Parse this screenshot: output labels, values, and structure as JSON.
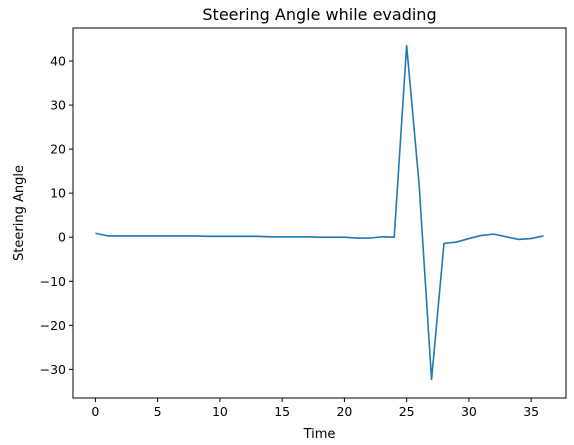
{
  "chart_data": {
    "type": "line",
    "title": "Steering Angle while evading",
    "xlabel": "Time",
    "ylabel": "Steering Angle",
    "xlim": [
      -1.8,
      37.8
    ],
    "ylim": [
      -36.5,
      47.5
    ],
    "x_ticks": [
      0,
      5,
      10,
      15,
      20,
      25,
      30,
      35
    ],
    "y_ticks": [
      -30,
      -20,
      -10,
      0,
      10,
      20,
      30,
      40
    ],
    "x_tick_labels": [
      "0",
      "5",
      "10",
      "15",
      "20",
      "25",
      "30",
      "35"
    ],
    "y_tick_labels": [
      "−30",
      "−20",
      "−10",
      "0",
      "10",
      "20",
      "30",
      "40"
    ],
    "grid": false,
    "color": "#1f77b4",
    "series": [
      {
        "x": [
          0,
          1,
          2,
          3,
          4,
          5,
          6,
          7,
          8,
          9,
          10,
          11,
          12,
          13,
          14,
          15,
          16,
          17,
          18,
          19,
          20,
          21,
          22,
          23,
          24,
          25,
          26,
          27,
          28,
          29,
          30,
          31,
          32,
          33,
          34,
          35,
          36
        ],
        "values": [
          0.9,
          0.3,
          0.3,
          0.3,
          0.3,
          0.3,
          0.3,
          0.3,
          0.3,
          0.2,
          0.2,
          0.2,
          0.2,
          0.2,
          0.1,
          0.1,
          0.1,
          0.1,
          0.0,
          0.0,
          0.0,
          -0.2,
          -0.2,
          0.1,
          0.0,
          43.5,
          12.0,
          -32.3,
          -1.4,
          -1.1,
          -0.3,
          0.4,
          0.7,
          0.1,
          -0.5,
          -0.3,
          0.3
        ]
      }
    ]
  }
}
